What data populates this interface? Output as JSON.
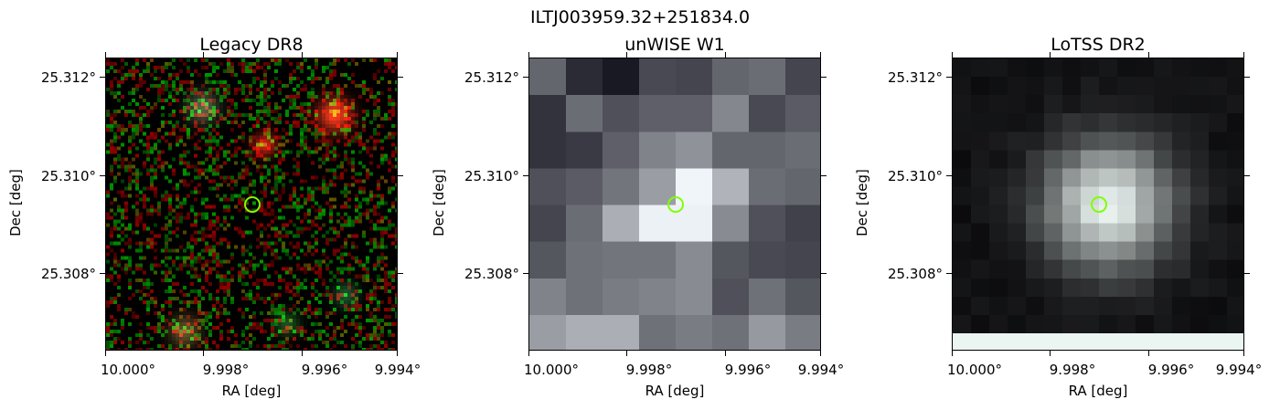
{
  "figure_title": "ILTJ003959.32+251834.0",
  "panels": [
    {
      "title": "Legacy DR8",
      "render": "color-noise"
    },
    {
      "title": "unWISE W1",
      "render": "grid-8x8"
    },
    {
      "title": "LoTSS DR2",
      "render": "radio-blob"
    }
  ],
  "y_ticks": [
    "25.312°",
    "25.310°",
    "25.308°"
  ],
  "x_ticks": [
    "10.000°",
    "9.998°",
    "9.996°",
    "9.994°"
  ],
  "y_axis_label": "Dec [deg]",
  "x_axis_label": "RA [deg]",
  "marker_color": "#7FFF00",
  "unwise_grid": [
    [
      0.35,
      0.08,
      0.0,
      0.22,
      0.2,
      0.35,
      0.38,
      0.2
    ],
    [
      0.12,
      0.38,
      0.25,
      0.32,
      0.32,
      0.5,
      0.22,
      0.3
    ],
    [
      0.12,
      0.15,
      0.32,
      0.48,
      0.55,
      0.35,
      0.35,
      0.38
    ],
    [
      0.25,
      0.3,
      0.42,
      0.6,
      1.0,
      0.7,
      0.38,
      0.35
    ],
    [
      0.2,
      0.38,
      0.68,
      0.98,
      0.98,
      0.52,
      0.25,
      0.18
    ],
    [
      0.28,
      0.4,
      0.42,
      0.42,
      0.52,
      0.28,
      0.22,
      0.2
    ],
    [
      0.48,
      0.4,
      0.45,
      0.48,
      0.52,
      0.25,
      0.4,
      0.28
    ],
    [
      0.6,
      0.68,
      0.68,
      0.4,
      0.45,
      0.4,
      0.58,
      0.45
    ]
  ]
}
